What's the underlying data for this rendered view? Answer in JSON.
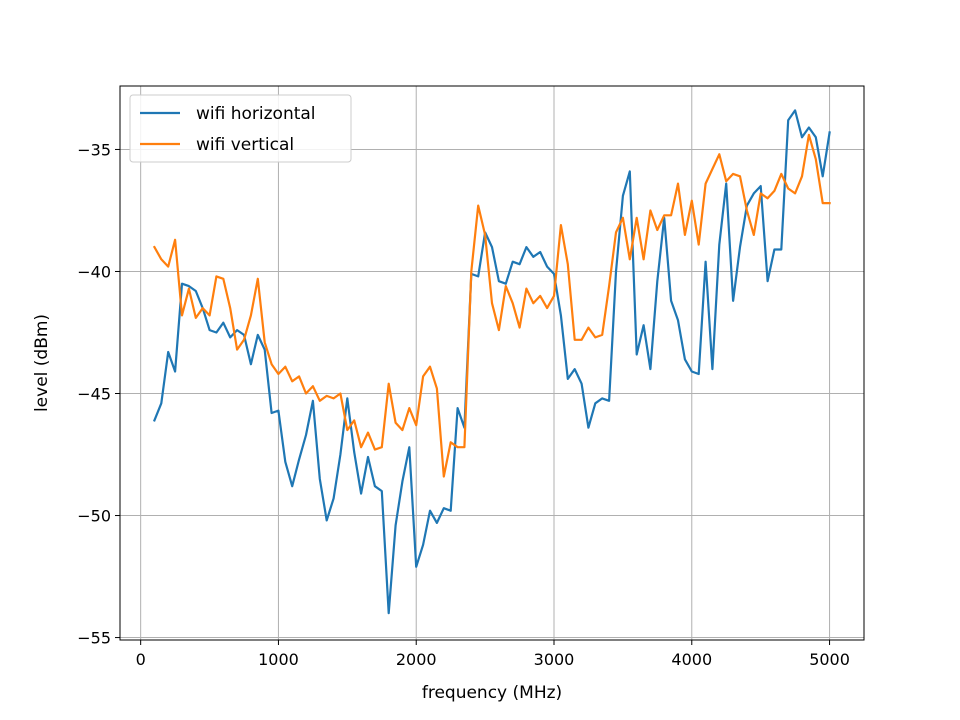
{
  "chart_data": {
    "type": "line",
    "title": "",
    "xlabel": "frequency (MHz)",
    "ylabel": "level (dBm)",
    "xlim": [
      -150,
      5250
    ],
    "ylim": [
      -55.1,
      -32.4
    ],
    "xticks": [
      0,
      1000,
      2000,
      3000,
      4000,
      5000
    ],
    "xtick_labels": [
      "0",
      "1000",
      "2000",
      "3000",
      "4000",
      "5000"
    ],
    "yticks": [
      -55,
      -50,
      -45,
      -40,
      -35
    ],
    "ytick_labels": [
      "−55",
      "−50",
      "−45",
      "−40",
      "−35"
    ],
    "grid": true,
    "legend": "upper-left",
    "x": [
      100,
      150,
      200,
      250,
      300,
      350,
      400,
      450,
      500,
      550,
      600,
      650,
      700,
      750,
      800,
      850,
      900,
      950,
      1000,
      1050,
      1100,
      1150,
      1200,
      1250,
      1300,
      1350,
      1400,
      1450,
      1500,
      1550,
      1600,
      1650,
      1700,
      1750,
      1800,
      1850,
      1900,
      1950,
      2000,
      2050,
      2100,
      2150,
      2200,
      2250,
      2300,
      2350,
      2400,
      2450,
      2500,
      2550,
      2600,
      2650,
      2700,
      2750,
      2800,
      2850,
      2900,
      2950,
      3000,
      3050,
      3100,
      3150,
      3200,
      3250,
      3300,
      3350,
      3400,
      3450,
      3500,
      3550,
      3600,
      3650,
      3700,
      3750,
      3800,
      3850,
      3900,
      3950,
      4000,
      4050,
      4100,
      4150,
      4200,
      4250,
      4300,
      4350,
      4400,
      4450,
      4500,
      4550,
      4600,
      4650,
      4700,
      4750,
      4800,
      4850,
      4900,
      4950,
      5000
    ],
    "series": [
      {
        "name": "wifi horizontal",
        "color": "#1f77b4",
        "values": [
          -46.1,
          -45.4,
          -43.3,
          -44.1,
          -40.5,
          -40.6,
          -40.8,
          -41.5,
          -42.4,
          -42.5,
          -42.1,
          -42.7,
          -42.4,
          -42.6,
          -43.8,
          -42.6,
          -43.2,
          -45.8,
          -45.7,
          -47.8,
          -48.8,
          -47.7,
          -46.7,
          -45.3,
          -48.5,
          -50.2,
          -49.3,
          -47.5,
          -45.2,
          -47.4,
          -49.1,
          -47.6,
          -48.8,
          -49.0,
          -54.0,
          -50.4,
          -48.6,
          -47.2,
          -52.1,
          -51.2,
          -49.8,
          -50.3,
          -49.7,
          -49.8,
          -45.6,
          -46.4,
          -40.1,
          -40.2,
          -38.4,
          -39.0,
          -40.4,
          -40.5,
          -39.6,
          -39.7,
          -39.0,
          -39.4,
          -39.2,
          -39.8,
          -40.1,
          -41.8,
          -44.4,
          -44.0,
          -44.6,
          -46.4,
          -45.4,
          -45.2,
          -45.3,
          -40.0,
          -36.9,
          -35.9,
          -43.4,
          -42.2,
          -44.0,
          -40.4,
          -37.8,
          -41.2,
          -42.0,
          -43.6,
          -44.1,
          -44.2,
          -39.6,
          -44.0,
          -38.9,
          -36.4,
          -41.2,
          -39.0,
          -37.3,
          -36.8,
          -36.5,
          -40.4,
          -39.1,
          -39.1,
          -33.8,
          -33.4,
          -34.5,
          -34.1,
          -34.5,
          -36.1,
          -34.3
        ]
      },
      {
        "name": "wifi vertical",
        "color": "#ff7f0e",
        "values": [
          -39.0,
          -39.5,
          -39.8,
          -38.7,
          -41.8,
          -40.7,
          -41.9,
          -41.5,
          -41.8,
          -40.2,
          -40.3,
          -41.5,
          -43.2,
          -42.8,
          -41.8,
          -40.3,
          -42.9,
          -43.8,
          -44.2,
          -43.9,
          -44.5,
          -44.3,
          -45.0,
          -44.7,
          -45.3,
          -45.1,
          -45.2,
          -45.0,
          -46.5,
          -46.1,
          -47.2,
          -46.6,
          -47.3,
          -47.2,
          -44.6,
          -46.2,
          -46.5,
          -45.6,
          -46.3,
          -44.3,
          -43.9,
          -44.8,
          -48.4,
          -47.0,
          -47.2,
          -47.2,
          -40.0,
          -37.3,
          -38.5,
          -41.3,
          -42.4,
          -40.6,
          -41.3,
          -42.3,
          -40.7,
          -41.3,
          -41.0,
          -41.5,
          -41.0,
          -38.1,
          -39.7,
          -42.8,
          -42.8,
          -42.3,
          -42.7,
          -42.6,
          -40.6,
          -38.4,
          -37.8,
          -39.5,
          -37.8,
          -39.5,
          -37.5,
          -38.3,
          -37.7,
          -37.7,
          -36.4,
          -38.5,
          -37.1,
          -38.9,
          -36.4,
          -35.8,
          -35.2,
          -36.3,
          -36.0,
          -36.1,
          -37.5,
          -38.5,
          -36.8,
          -37.0,
          -36.7,
          -36.0,
          -36.6,
          -36.8,
          -36.1,
          -34.4,
          -35.4,
          -37.2,
          -37.2
        ]
      }
    ]
  }
}
